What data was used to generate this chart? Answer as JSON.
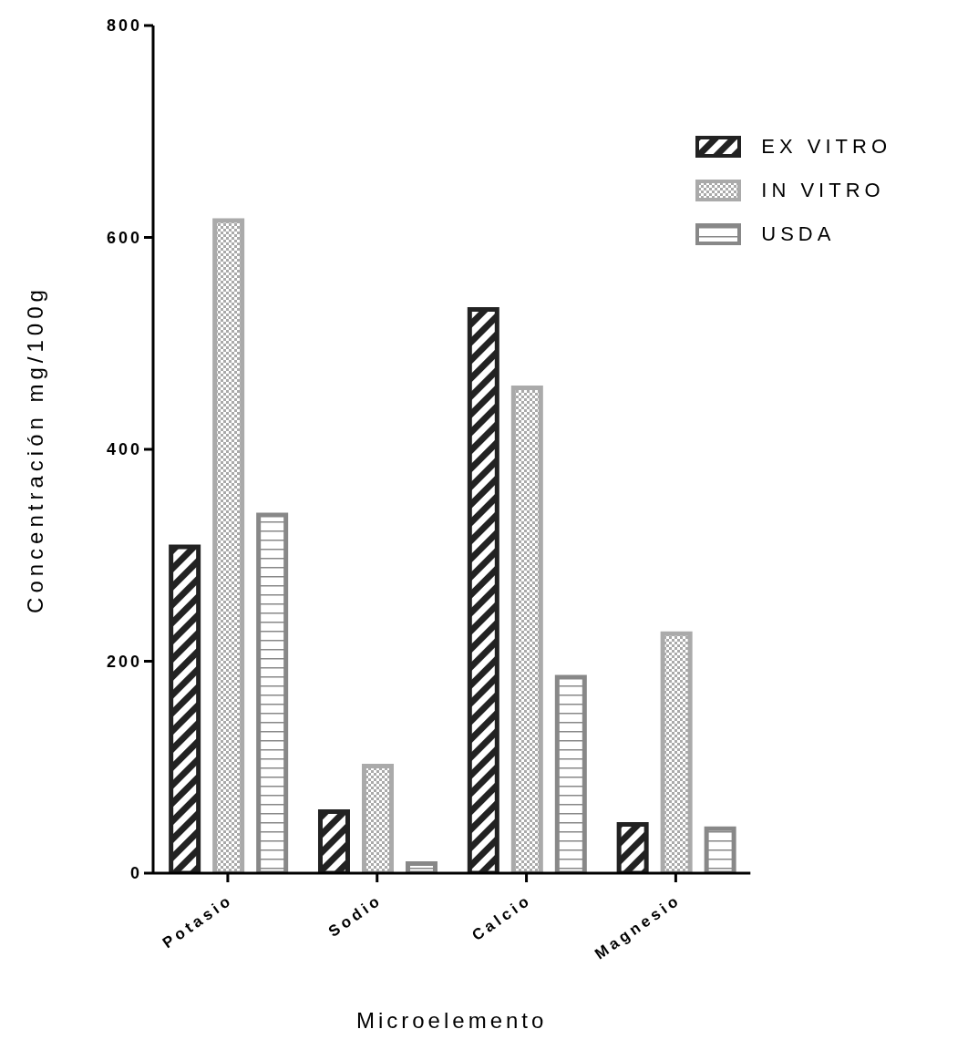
{
  "chart_data": {
    "type": "bar",
    "xlabel": "Microelemento",
    "ylabel": "Concentración mg/100g",
    "categories": [
      "Potasio",
      "Sodio",
      "Calcio",
      "Magnesio"
    ],
    "series": [
      {
        "name": "EX VITRO",
        "color": "#222222",
        "values": [
          308,
          58,
          532,
          46
        ]
      },
      {
        "name": "IN VITRO",
        "color": "#aaaaaa",
        "values": [
          616,
          101,
          458,
          226
        ]
      },
      {
        "name": "USDA",
        "color": "#888888",
        "values": [
          338,
          9,
          185,
          42
        ]
      }
    ],
    "ylim": [
      0,
      800
    ],
    "yticks": [
      0,
      200,
      400,
      600,
      800
    ],
    "grid": false,
    "legend": "top right"
  }
}
